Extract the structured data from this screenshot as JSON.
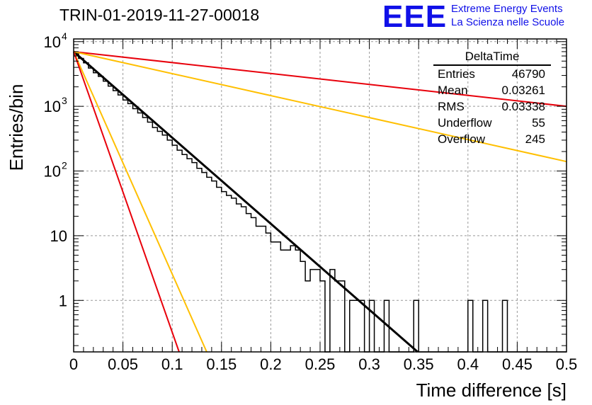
{
  "header": {
    "title": "TRIN-01-2019-11-27-00018",
    "logo_text": "EEE",
    "brand_line1": "Extreme Energy Events",
    "brand_line2": "La Scienza nelle Scuole"
  },
  "stats_box": {
    "name": "DeltaTime",
    "rows": [
      {
        "label": "Entries",
        "value": "46790"
      },
      {
        "label": "Mean",
        "value": "0.03261"
      },
      {
        "label": "RMS",
        "value": "0.03338"
      },
      {
        "label": "Underflow",
        "value": "55"
      },
      {
        "label": "Overflow",
        "value": "245"
      }
    ]
  },
  "chart_data": {
    "type": "line",
    "title": "TRIN-01-2019-11-27-00018",
    "xlabel": "Time difference [s]",
    "ylabel": "Entries/bin",
    "xlim": [
      0,
      0.5
    ],
    "ylim": [
      0.16,
      11000
    ],
    "yscale": "log",
    "grid": true,
    "x_ticks": [
      {
        "value": 0,
        "label": "0"
      },
      {
        "value": 0.05,
        "label": "0.05"
      },
      {
        "value": 0.1,
        "label": "0.1"
      },
      {
        "value": 0.15,
        "label": "0.15"
      },
      {
        "value": 0.2,
        "label": "0.2"
      },
      {
        "value": 0.25,
        "label": "0.25"
      },
      {
        "value": 0.3,
        "label": "0.3"
      },
      {
        "value": 0.35,
        "label": "0.35"
      },
      {
        "value": 0.4,
        "label": "0.4"
      },
      {
        "value": 0.45,
        "label": "0.45"
      },
      {
        "value": 0.5,
        "label": "0.5"
      }
    ],
    "y_ticks": [
      {
        "value": 1,
        "label": "1"
      },
      {
        "value": 10,
        "label": "10"
      },
      {
        "value": 100,
        "label": "10",
        "exp": "2"
      },
      {
        "value": 1000,
        "label": "10",
        "exp": "3"
      },
      {
        "value": 10000,
        "label": "10",
        "exp": "4"
      }
    ],
    "histogram": {
      "bin_width": 0.005,
      "values": [
        6500,
        5500,
        4700,
        3900,
        3300,
        2900,
        2450,
        2050,
        1750,
        1500,
        1250,
        1100,
        920,
        790,
        670,
        570,
        470,
        410,
        360,
        300,
        250,
        210,
        180,
        155,
        135,
        110,
        95,
        80,
        70,
        56,
        48,
        42,
        38,
        31,
        28,
        22,
        19,
        14,
        14,
        11,
        8,
        8,
        6,
        6,
        7,
        6,
        4,
        2,
        3,
        3,
        2,
        0,
        3,
        2,
        2,
        0,
        1,
        1,
        1,
        0,
        1,
        0,
        0,
        1,
        0,
        0,
        0,
        0,
        0,
        1,
        0,
        0,
        0,
        0,
        0,
        0,
        0,
        0,
        0,
        0,
        1,
        0,
        0,
        1,
        0,
        0,
        0,
        1,
        0,
        0,
        0,
        0,
        0,
        0,
        0,
        0,
        0,
        0,
        0,
        0
      ]
    },
    "series": [
      {
        "color": "#000000",
        "values": [
          7000,
          0.16
        ],
        "x": [
          0,
          0.349
        ]
      },
      {
        "color": "#e8000b",
        "values": [
          7000,
          1000
        ],
        "x": [
          0,
          0.5
        ]
      },
      {
        "color": "#ffbf00",
        "values": [
          7000,
          140
        ],
        "x": [
          0,
          0.5
        ]
      },
      {
        "color": "#ffbf00",
        "values": [
          7000,
          0.16
        ],
        "x": [
          0,
          0.135
        ]
      },
      {
        "color": "#e8000b",
        "values": [
          7000,
          0.16
        ],
        "x": [
          0,
          0.107
        ]
      }
    ]
  }
}
